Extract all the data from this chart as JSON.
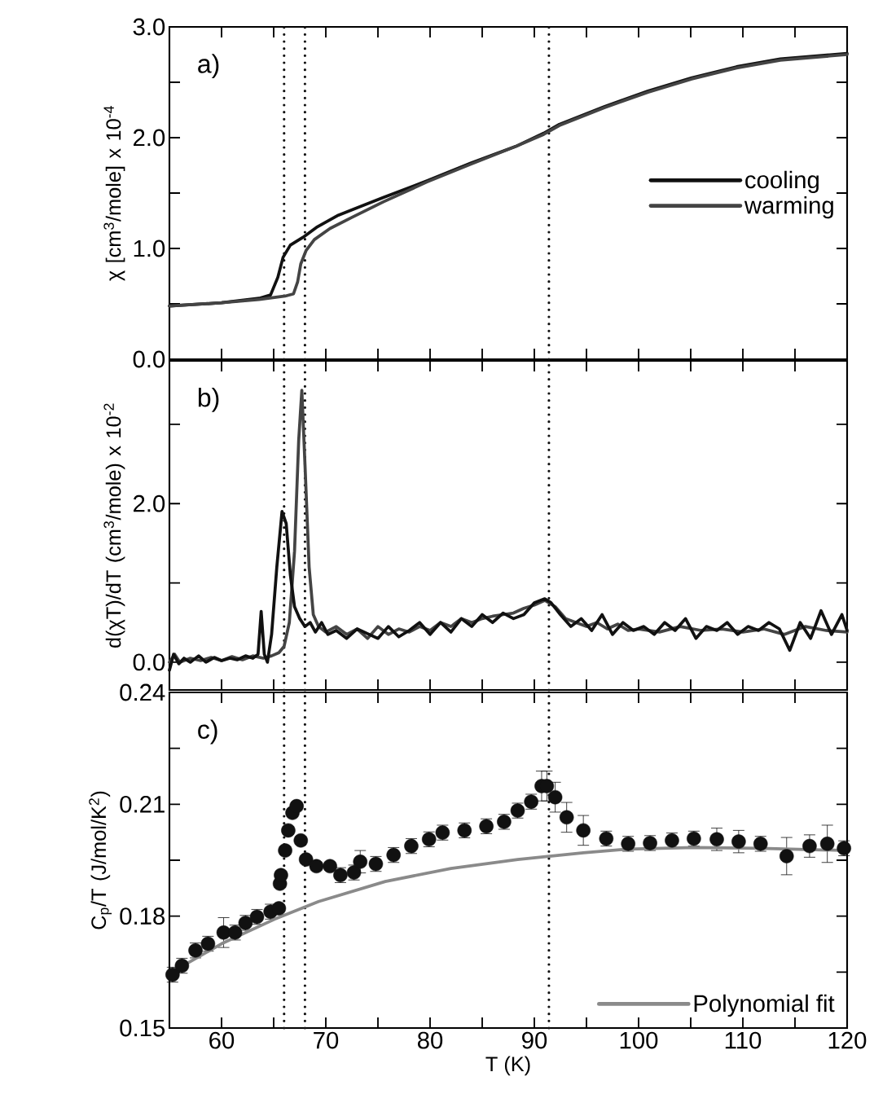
{
  "chart_data": [
    {
      "type": "line",
      "annotations": [
        "a)"
      ],
      "ylabel": "χ [cm$^{3}$/mole] x 10$^{-4}$",
      "xlim": [
        55,
        120
      ],
      "ylim": [
        0,
        3
      ],
      "tick_labels": "y",
      "legend": "right",
      "xticks": [
        60,
        {
          "value": 65,
          "label": null
        },
        70,
        {
          "value": 75,
          "label": null
        },
        80,
        {
          "value": 85,
          "label": null
        },
        90,
        {
          "value": 95,
          "label": null
        },
        100,
        {
          "value": 105,
          "label": null
        },
        110,
        {
          "value": 115,
          "label": null
        },
        120
      ],
      "yticks": [
        {
          "value": 0,
          "label": "0.0"
        },
        {
          "value": 0.5,
          "label": null
        },
        {
          "value": 1,
          "label": "1.0"
        },
        {
          "value": 1.5,
          "label": null
        },
        {
          "value": 2,
          "label": "2.0"
        },
        {
          "value": 2.5,
          "label": null
        },
        {
          "value": 3,
          "label": "3.0"
        }
      ],
      "ref_lines": [
        {
          "axis": "x",
          "value": 66,
          "line_style": "dotted",
          "color": "#111111"
        },
        {
          "axis": "x",
          "value": 68,
          "line_style": "dotted",
          "color": "#111111"
        },
        {
          "axis": "x",
          "value": 91.4,
          "line_style": "dotted",
          "color": "#111111"
        }
      ],
      "series": [
        {
          "name": "cooling",
          "color": "#111111",
          "x": [
            55,
            60,
            63.6,
            64.7,
            65.4,
            65.9,
            66.6,
            67.8,
            69.1,
            71.2,
            75.5,
            79.7,
            83.9,
            88.2,
            90.9,
            92.4,
            96.7,
            100.9,
            105.1,
            109.4,
            113.6,
            120
          ],
          "values": [
            0.48,
            0.51,
            0.55,
            0.58,
            0.74,
            0.92,
            1.03,
            1.1,
            1.19,
            1.3,
            1.46,
            1.61,
            1.77,
            1.92,
            2.04,
            2.12,
            2.28,
            2.42,
            2.54,
            2.64,
            2.71,
            2.76
          ]
        },
        {
          "name": "warming",
          "color": "#444444",
          "x": [
            55,
            60,
            63.6,
            66.1,
            66.9,
            67.3,
            67.6,
            68.1,
            68.9,
            70.4,
            72.5,
            75.5,
            79.7,
            83.9,
            88.2,
            90.9,
            92.4,
            96.7,
            100.9,
            105.1,
            109.4,
            113.6,
            120
          ],
          "values": [
            0.48,
            0.51,
            0.54,
            0.57,
            0.59,
            0.7,
            0.86,
            0.98,
            1.08,
            1.18,
            1.28,
            1.42,
            1.6,
            1.76,
            1.92,
            2.03,
            2.11,
            2.27,
            2.41,
            2.53,
            2.63,
            2.7,
            2.75
          ]
        }
      ]
    },
    {
      "type": "line",
      "annotations": [
        "b)"
      ],
      "ylabel": "d(χT)/dT (cm$^{3}$/mole) x 10$^{-2}$",
      "xlim": [
        55,
        120
      ],
      "ylim": [
        -0.35,
        3.8
      ],
      "tick_labels": "y",
      "xticks": [
        60,
        {
          "value": 65,
          "label": null
        },
        70,
        {
          "value": 75,
          "label": null
        },
        80,
        {
          "value": 85,
          "label": null
        },
        90,
        {
          "value": 95,
          "label": null
        },
        100,
        {
          "value": 105,
          "label": null
        },
        110,
        {
          "value": 115,
          "label": null
        },
        120
      ],
      "yticks": [
        {
          "value": 0,
          "label": "0.0"
        },
        {
          "value": 1,
          "label": null
        },
        {
          "value": 2,
          "label": "2.0"
        },
        {
          "value": 3,
          "label": null
        }
      ],
      "ref_lines": [
        {
          "axis": "x",
          "value": 66,
          "line_style": "dotted",
          "color": "#111111"
        },
        {
          "axis": "x",
          "value": 68,
          "line_style": "dotted",
          "color": "#111111"
        },
        {
          "axis": "x",
          "value": 91.4,
          "line_style": "dotted",
          "color": "#111111"
        }
      ],
      "series": [
        {
          "color": "#444444",
          "x": [
            55,
            55.5,
            56,
            57,
            58,
            59,
            60,
            61,
            62,
            63,
            64,
            64.8,
            65.5,
            66,
            66.5,
            67,
            67.4,
            67.7,
            68,
            68.4,
            68.8,
            69.3,
            70,
            71,
            72,
            73,
            74,
            75,
            76,
            77,
            78,
            79,
            80,
            81,
            82,
            83,
            84,
            85,
            86,
            87,
            88,
            89,
            90,
            91,
            92,
            93,
            94,
            95,
            96,
            97,
            98,
            99,
            100,
            102,
            104,
            106,
            108,
            110,
            112,
            114,
            116,
            118,
            120
          ],
          "values": [
            0,
            0.1,
            0,
            0.05,
            0.02,
            0.06,
            0.02,
            0.07,
            0.03,
            0.08,
            0.05,
            0.08,
            0.12,
            0.2,
            0.5,
            1.4,
            2.8,
            3.43,
            2.5,
            1.2,
            0.6,
            0.45,
            0.38,
            0.45,
            0.35,
            0.42,
            0.3,
            0.45,
            0.35,
            0.42,
            0.38,
            0.45,
            0.4,
            0.5,
            0.45,
            0.55,
            0.5,
            0.55,
            0.58,
            0.6,
            0.62,
            0.68,
            0.72,
            0.78,
            0.7,
            0.55,
            0.5,
            0.45,
            0.5,
            0.42,
            0.48,
            0.4,
            0.42,
            0.38,
            0.45,
            0.4,
            0.42,
            0.38,
            0.42,
            0.35,
            0.45,
            0.4,
            0.38
          ]
        },
        {
          "color": "#111111",
          "x": [
            55,
            55.4,
            55.9,
            56.4,
            57,
            57.8,
            58.5,
            59.3,
            60,
            60.8,
            61.5,
            62.3,
            63,
            63.5,
            63.8,
            64.1,
            64.4,
            64.8,
            65.3,
            65.8,
            66.2,
            66.6,
            67,
            67.5,
            68,
            68.5,
            69,
            69.6,
            70.2,
            71,
            72,
            73,
            74,
            75,
            76,
            77,
            78,
            79,
            80,
            81,
            82,
            83,
            84,
            85,
            86,
            87,
            88,
            89,
            90,
            91,
            91.6,
            92.5,
            93.5,
            94.5,
            95.5,
            96.5,
            97.5,
            98.5,
            99.5,
            100.5,
            101.5,
            102.5,
            103.5,
            104.5,
            105.5,
            106.5,
            107.5,
            108.5,
            109.5,
            110.5,
            111.5,
            112.5,
            113.5,
            114.5,
            115.5,
            116.5,
            117.5,
            118.5,
            119.5,
            120
          ],
          "values": [
            -0.1,
            0.1,
            -0.02,
            0.05,
            0,
            0.08,
            0,
            0.06,
            0.02,
            0.05,
            0.03,
            0.08,
            0.05,
            0.1,
            0.64,
            0.1,
            0,
            0.35,
            1.2,
            1.9,
            1.75,
            1.1,
            0.7,
            0.55,
            0.45,
            0.5,
            0.38,
            0.5,
            0.35,
            0.4,
            0.3,
            0.42,
            0.36,
            0.3,
            0.45,
            0.32,
            0.4,
            0.5,
            0.35,
            0.5,
            0.38,
            0.55,
            0.45,
            0.6,
            0.5,
            0.62,
            0.55,
            0.6,
            0.75,
            0.8,
            0.75,
            0.6,
            0.45,
            0.55,
            0.4,
            0.6,
            0.35,
            0.5,
            0.4,
            0.45,
            0.35,
            0.5,
            0.4,
            0.55,
            0.3,
            0.45,
            0.4,
            0.5,
            0.35,
            0.45,
            0.4,
            0.5,
            0.42,
            0.15,
            0.5,
            0.3,
            0.65,
            0.35,
            0.6,
            0.4
          ]
        }
      ]
    },
    {
      "type": "scatter",
      "annotations": [
        "c)"
      ],
      "xlabel": "T (K)",
      "ylabel": "C$_{p}$/T (J/mol/K$^{2}$)",
      "xlim": [
        55,
        120
      ],
      "ylim": [
        0.15,
        0.24
      ],
      "legend": "bottom right",
      "xticks": [
        60,
        {
          "value": 65,
          "label": null
        },
        70,
        {
          "value": 75,
          "label": null
        },
        80,
        {
          "value": 85,
          "label": null
        },
        90,
        {
          "value": 95,
          "label": null
        },
        100,
        {
          "value": 105,
          "label": null
        },
        110,
        {
          "value": 115,
          "label": null
        },
        120
      ],
      "yticks": [
        0.15,
        {
          "value": 0.165,
          "label": null
        },
        0.18,
        {
          "value": 0.195,
          "label": null
        },
        0.21,
        {
          "value": 0.225,
          "label": null
        },
        0.24
      ],
      "ref_lines": [
        {
          "axis": "x",
          "value": 66,
          "line_style": "dotted",
          "color": "#111111"
        },
        {
          "axis": "x",
          "value": 68,
          "line_style": "dotted",
          "color": "#111111"
        },
        {
          "axis": "x",
          "value": 91.4,
          "line_style": "dotted",
          "color": "#111111"
        }
      ],
      "series": [
        {
          "color": "#111111",
          "marker": "circle",
          "x": [
            55.3,
            56.2,
            57.5,
            58.7,
            60.2,
            61.3,
            62.3,
            63.4,
            64.7,
            65.5,
            65.6,
            65.7,
            66.1,
            66.4,
            66.8,
            67.2,
            67.6,
            68.1,
            69.1,
            70.4,
            71.4,
            72.7,
            73.3,
            74.8,
            76.5,
            78.2,
            79.9,
            81.2,
            83.3,
            85.4,
            87.1,
            88.4,
            89.7,
            90.7,
            91.2,
            92,
            93.1,
            94.7,
            96.9,
            99,
            101.1,
            103.2,
            105.3,
            107.5,
            109.6,
            111.7,
            114.2,
            116.4,
            118.1,
            119.7
          ],
          "values": [
            0.1643,
            0.1667,
            0.1708,
            0.1726,
            0.1756,
            0.1756,
            0.1782,
            0.1798,
            0.1812,
            0.1821,
            0.1887,
            0.191,
            0.1976,
            0.203,
            0.2077,
            0.2095,
            0.2003,
            0.1952,
            0.1934,
            0.1934,
            0.191,
            0.1917,
            0.1946,
            0.194,
            0.1964,
            0.1988,
            0.2006,
            0.2024,
            0.203,
            0.2041,
            0.2053,
            0.2083,
            0.2107,
            0.2149,
            0.2149,
            0.2119,
            0.2065,
            0.203,
            0.2008,
            0.1994,
            0.1996,
            0.2003,
            0.2008,
            0.2006,
            0.2,
            0.1994,
            0.1961,
            0.1988,
            0.1994,
            0.1982
          ],
          "errors": [
            0.002,
            0.002,
            0.002,
            0.002,
            0.004,
            0.002,
            0.002,
            0.002,
            0.002,
            0.001,
            0.001,
            0.001,
            0.001,
            0.001,
            0.001,
            0.001,
            0.001,
            0.001,
            0.001,
            0.001,
            0.002,
            0.002,
            0.003,
            0.002,
            0.002,
            0.002,
            0.002,
            0.002,
            0.002,
            0.002,
            0.002,
            0.002,
            0.002,
            0.004,
            0.004,
            0.004,
            0.004,
            0.004,
            0.002,
            0.002,
            0.002,
            0.002,
            0.002,
            0.003,
            0.003,
            0.002,
            0.005,
            0.003,
            0.005,
            0.002
          ]
        },
        {
          "type": "line",
          "name": "Polynomial fit",
          "color": "#8a8a8a",
          "x": [
            55.3,
            60,
            65.1,
            69.3,
            75.7,
            82,
            88.4,
            94.7,
            99,
            105.3,
            111.7,
            120
          ],
          "values": [
            0.1651,
            0.1726,
            0.1792,
            0.1839,
            0.1893,
            0.1928,
            0.1952,
            0.197,
            0.198,
            0.1984,
            0.1982,
            0.1976
          ]
        }
      ]
    }
  ]
}
